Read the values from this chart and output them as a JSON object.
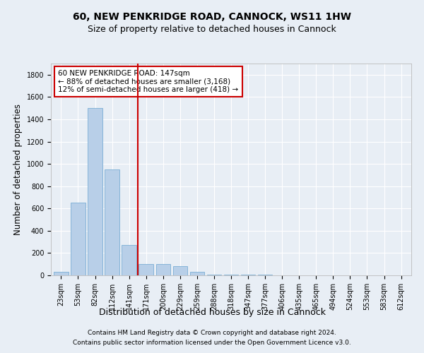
{
  "title": "60, NEW PENKRIDGE ROAD, CANNOCK, WS11 1HW",
  "subtitle": "Size of property relative to detached houses in Cannock",
  "xlabel": "Distribution of detached houses by size in Cannock",
  "ylabel": "Number of detached properties",
  "categories": [
    "23sqm",
    "53sqm",
    "82sqm",
    "112sqm",
    "141sqm",
    "171sqm",
    "200sqm",
    "229sqm",
    "259sqm",
    "288sqm",
    "318sqm",
    "347sqm",
    "377sqm",
    "406sqm",
    "435sqm",
    "465sqm",
    "494sqm",
    "524sqm",
    "553sqm",
    "583sqm",
    "612sqm"
  ],
  "values": [
    30,
    650,
    1500,
    950,
    270,
    100,
    100,
    80,
    30,
    8,
    8,
    8,
    5,
    0,
    0,
    0,
    0,
    0,
    0,
    0,
    0
  ],
  "bar_color": "#b8cfe8",
  "bar_edge_color": "#7aadd4",
  "vline_color": "#cc0000",
  "annotation_line1": "60 NEW PENKRIDGE ROAD: 147sqm",
  "annotation_line2": "← 88% of detached houses are smaller (3,168)",
  "annotation_line3": "12% of semi-detached houses are larger (418) →",
  "annotation_box_color": "#ffffff",
  "annotation_box_edge": "#cc0000",
  "ylim": [
    0,
    1900
  ],
  "yticks": [
    0,
    200,
    400,
    600,
    800,
    1000,
    1200,
    1400,
    1600,
    1800
  ],
  "footer1": "Contains HM Land Registry data © Crown copyright and database right 2024.",
  "footer2": "Contains public sector information licensed under the Open Government Licence v3.0.",
  "bg_color": "#e8eef5",
  "plot_bg_color": "#e8eef5",
  "grid_color": "#ffffff",
  "title_fontsize": 10,
  "subtitle_fontsize": 9,
  "axis_label_fontsize": 8.5,
  "tick_fontsize": 7,
  "footer_fontsize": 6.5,
  "annotation_fontsize": 7.5
}
